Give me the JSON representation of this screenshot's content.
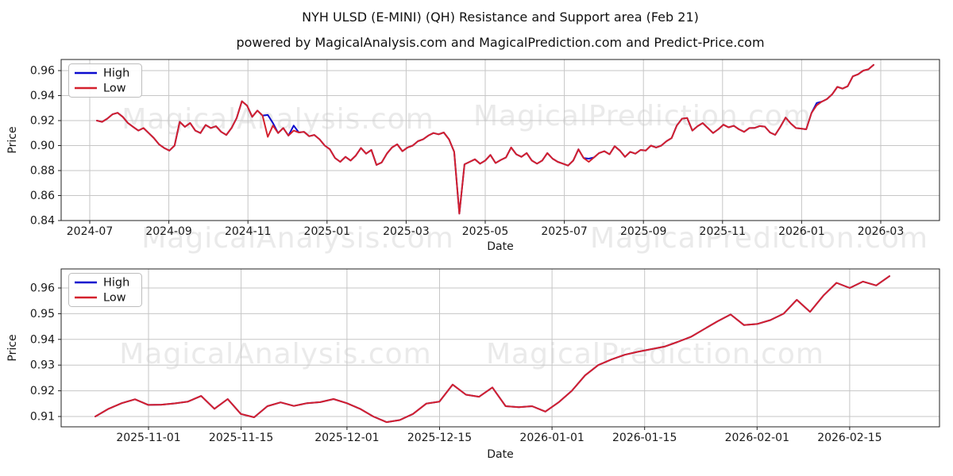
{
  "title": "NYH ULSD (E-MINI) (QH) Resistance and Support area (Feb 21)",
  "subtitle": "powered by MagicalAnalysis.com and MagicalPrediction.com and Predict-Price.com",
  "watermarks": [
    "MagicalAnalysis.com",
    "MagicalPrediction.com"
  ],
  "legend": {
    "high": "High",
    "low": "Low"
  },
  "colors": {
    "high_line": "#0b0bce",
    "low_line": "#d4212d",
    "grid": "#c6c6c6",
    "watermark": "#eaeaea",
    "frame": "#222222"
  },
  "chart_data": [
    {
      "type": "line",
      "xlabel": "Date",
      "ylabel": "Price",
      "x_ticks": [
        "2024-07",
        "2024-09",
        "2024-11",
        "2025-01",
        "2025-03",
        "2025-05",
        "2025-07",
        "2025-09",
        "2025-11",
        "2026-01",
        "2026-03"
      ],
      "y_ticks": [
        "0.84",
        "0.86",
        "0.88",
        "0.90",
        "0.92",
        "0.94",
        "0.96"
      ],
      "ylim": [
        0.84,
        0.969
      ],
      "x_range": [
        "2024-07-03",
        "2026-02-23"
      ],
      "sample_interval_days": 4,
      "grid": true,
      "legend_position": "upper left",
      "series": [
        {
          "name": "High",
          "color_key": "high_line",
          "values": [
            0.92,
            0.919,
            0.9215,
            0.925,
            0.9262,
            0.923,
            0.918,
            0.915,
            0.912,
            0.914,
            0.91,
            0.906,
            0.901,
            0.898,
            0.896,
            0.9,
            0.919,
            0.915,
            0.918,
            0.912,
            0.91,
            0.9165,
            0.914,
            0.9155,
            0.911,
            0.9085,
            0.914,
            0.922,
            0.9355,
            0.932,
            0.923,
            0.928,
            0.924,
            0.9245,
            0.918,
            0.91,
            0.914,
            0.908,
            0.916,
            0.9105,
            0.911,
            0.9075,
            0.9085,
            0.905,
            0.9,
            0.897,
            0.89,
            0.887,
            0.891,
            0.888,
            0.892,
            0.898,
            0.8935,
            0.8965,
            0.8845,
            0.8865,
            0.8935,
            0.8985,
            0.901,
            0.8955,
            0.8985,
            0.9,
            0.9035,
            0.905,
            0.908,
            0.91,
            0.909,
            0.9105,
            0.905,
            0.895,
            0.8455,
            0.885,
            0.887,
            0.889,
            0.8855,
            0.888,
            0.8925,
            0.886,
            0.8885,
            0.8905,
            0.8985,
            0.893,
            0.891,
            0.894,
            0.888,
            0.8855,
            0.888,
            0.894,
            0.8895,
            0.887,
            0.8855,
            0.884,
            0.888,
            0.897,
            0.89,
            0.8895,
            0.8905,
            0.894,
            0.8955,
            0.893,
            0.8995,
            0.896,
            0.891,
            0.895,
            0.8935,
            0.8965,
            0.896,
            0.9,
            0.8985,
            0.9,
            0.9035,
            0.906,
            0.916,
            0.9215,
            0.922,
            0.912,
            0.9155,
            0.918,
            0.914,
            0.91,
            0.913,
            0.9167,
            0.9146,
            0.9158,
            0.913,
            0.911,
            0.914,
            0.9141,
            0.9156,
            0.9152,
            0.9105,
            0.9086,
            0.915,
            0.9224,
            0.9177,
            0.914,
            0.9136,
            0.913,
            0.926,
            0.934,
            0.9352,
            0.9372,
            0.941,
            0.947,
            0.9456,
            0.9475,
            0.9554,
            0.957,
            0.96,
            0.961,
            0.9646
          ]
        },
        {
          "name": "Low",
          "color_key": "low_line",
          "values": [
            0.92,
            0.919,
            0.9215,
            0.925,
            0.9262,
            0.923,
            0.918,
            0.915,
            0.912,
            0.914,
            0.91,
            0.906,
            0.901,
            0.898,
            0.896,
            0.9,
            0.919,
            0.915,
            0.918,
            0.912,
            0.91,
            0.9165,
            0.914,
            0.9155,
            0.911,
            0.9085,
            0.914,
            0.922,
            0.9355,
            0.932,
            0.923,
            0.928,
            0.924,
            0.907,
            0.916,
            0.91,
            0.914,
            0.908,
            0.912,
            0.9105,
            0.911,
            0.9075,
            0.9085,
            0.905,
            0.9,
            0.897,
            0.89,
            0.887,
            0.891,
            0.888,
            0.892,
            0.898,
            0.8935,
            0.8965,
            0.8845,
            0.8865,
            0.8935,
            0.8985,
            0.901,
            0.8955,
            0.8985,
            0.9,
            0.9035,
            0.905,
            0.908,
            0.91,
            0.909,
            0.9105,
            0.905,
            0.895,
            0.8455,
            0.885,
            0.887,
            0.889,
            0.8855,
            0.888,
            0.8925,
            0.886,
            0.8885,
            0.8905,
            0.8985,
            0.893,
            0.891,
            0.894,
            0.888,
            0.8855,
            0.888,
            0.894,
            0.8895,
            0.887,
            0.8855,
            0.884,
            0.888,
            0.897,
            0.89,
            0.887,
            0.8905,
            0.894,
            0.8955,
            0.893,
            0.8995,
            0.896,
            0.891,
            0.895,
            0.8935,
            0.8965,
            0.896,
            0.9,
            0.8985,
            0.9,
            0.9035,
            0.906,
            0.916,
            0.9215,
            0.922,
            0.912,
            0.9155,
            0.918,
            0.914,
            0.91,
            0.913,
            0.9167,
            0.9146,
            0.9158,
            0.913,
            0.911,
            0.914,
            0.9141,
            0.9156,
            0.9152,
            0.9105,
            0.9086,
            0.915,
            0.9224,
            0.9177,
            0.914,
            0.9136,
            0.913,
            0.926,
            0.9322,
            0.9352,
            0.9372,
            0.941,
            0.947,
            0.9456,
            0.9475,
            0.9554,
            0.957,
            0.96,
            0.961,
            0.9646
          ]
        }
      ]
    },
    {
      "type": "line",
      "xlabel": "Date",
      "ylabel": "Price",
      "x_ticks": [
        "2025-11-01",
        "2025-11-15",
        "2025-12-01",
        "2025-12-15",
        "2026-01-01",
        "2026-01-15",
        "2026-02-01",
        "2026-02-15"
      ],
      "y_ticks": [
        "0.91",
        "0.92",
        "0.93",
        "0.94",
        "0.95",
        "0.96"
      ],
      "ylim": [
        0.906,
        0.967
      ],
      "x_range": [
        "2025-10-24",
        "2026-02-21"
      ],
      "sample_interval_days": 2,
      "grid": true,
      "legend_position": "upper left",
      "series": [
        {
          "name": "High",
          "color_key": "high_line",
          "values": [
            0.91,
            0.913,
            0.9152,
            0.9167,
            0.9145,
            0.9146,
            0.9151,
            0.9158,
            0.918,
            0.913,
            0.9168,
            0.911,
            0.9097,
            0.914,
            0.9155,
            0.9141,
            0.9152,
            0.9156,
            0.9168,
            0.9152,
            0.913,
            0.91,
            0.9078,
            0.9086,
            0.911,
            0.915,
            0.9158,
            0.9224,
            0.9185,
            0.9177,
            0.9213,
            0.914,
            0.9136,
            0.914,
            0.9119,
            0.9155,
            0.92,
            0.926,
            0.93,
            0.9322,
            0.934,
            0.9352,
            0.9362,
            0.9372,
            0.939,
            0.941,
            0.944,
            0.947,
            0.9497,
            0.9456,
            0.946,
            0.9475,
            0.95,
            0.9554,
            0.9507,
            0.957,
            0.962,
            0.96,
            0.9625,
            0.961,
            0.9646
          ]
        },
        {
          "name": "Low",
          "color_key": "low_line",
          "values": [
            0.91,
            0.913,
            0.9152,
            0.9167,
            0.9145,
            0.9146,
            0.9151,
            0.9158,
            0.918,
            0.913,
            0.9168,
            0.911,
            0.9097,
            0.914,
            0.9155,
            0.9141,
            0.9152,
            0.9156,
            0.9168,
            0.9152,
            0.913,
            0.91,
            0.9078,
            0.9086,
            0.911,
            0.915,
            0.9158,
            0.9224,
            0.9185,
            0.9177,
            0.9213,
            0.914,
            0.9136,
            0.914,
            0.9119,
            0.9155,
            0.92,
            0.926,
            0.93,
            0.9322,
            0.934,
            0.9352,
            0.9362,
            0.9372,
            0.939,
            0.941,
            0.944,
            0.947,
            0.9497,
            0.9456,
            0.946,
            0.9475,
            0.95,
            0.9554,
            0.9507,
            0.957,
            0.962,
            0.96,
            0.9625,
            0.961,
            0.9646
          ]
        }
      ]
    }
  ]
}
